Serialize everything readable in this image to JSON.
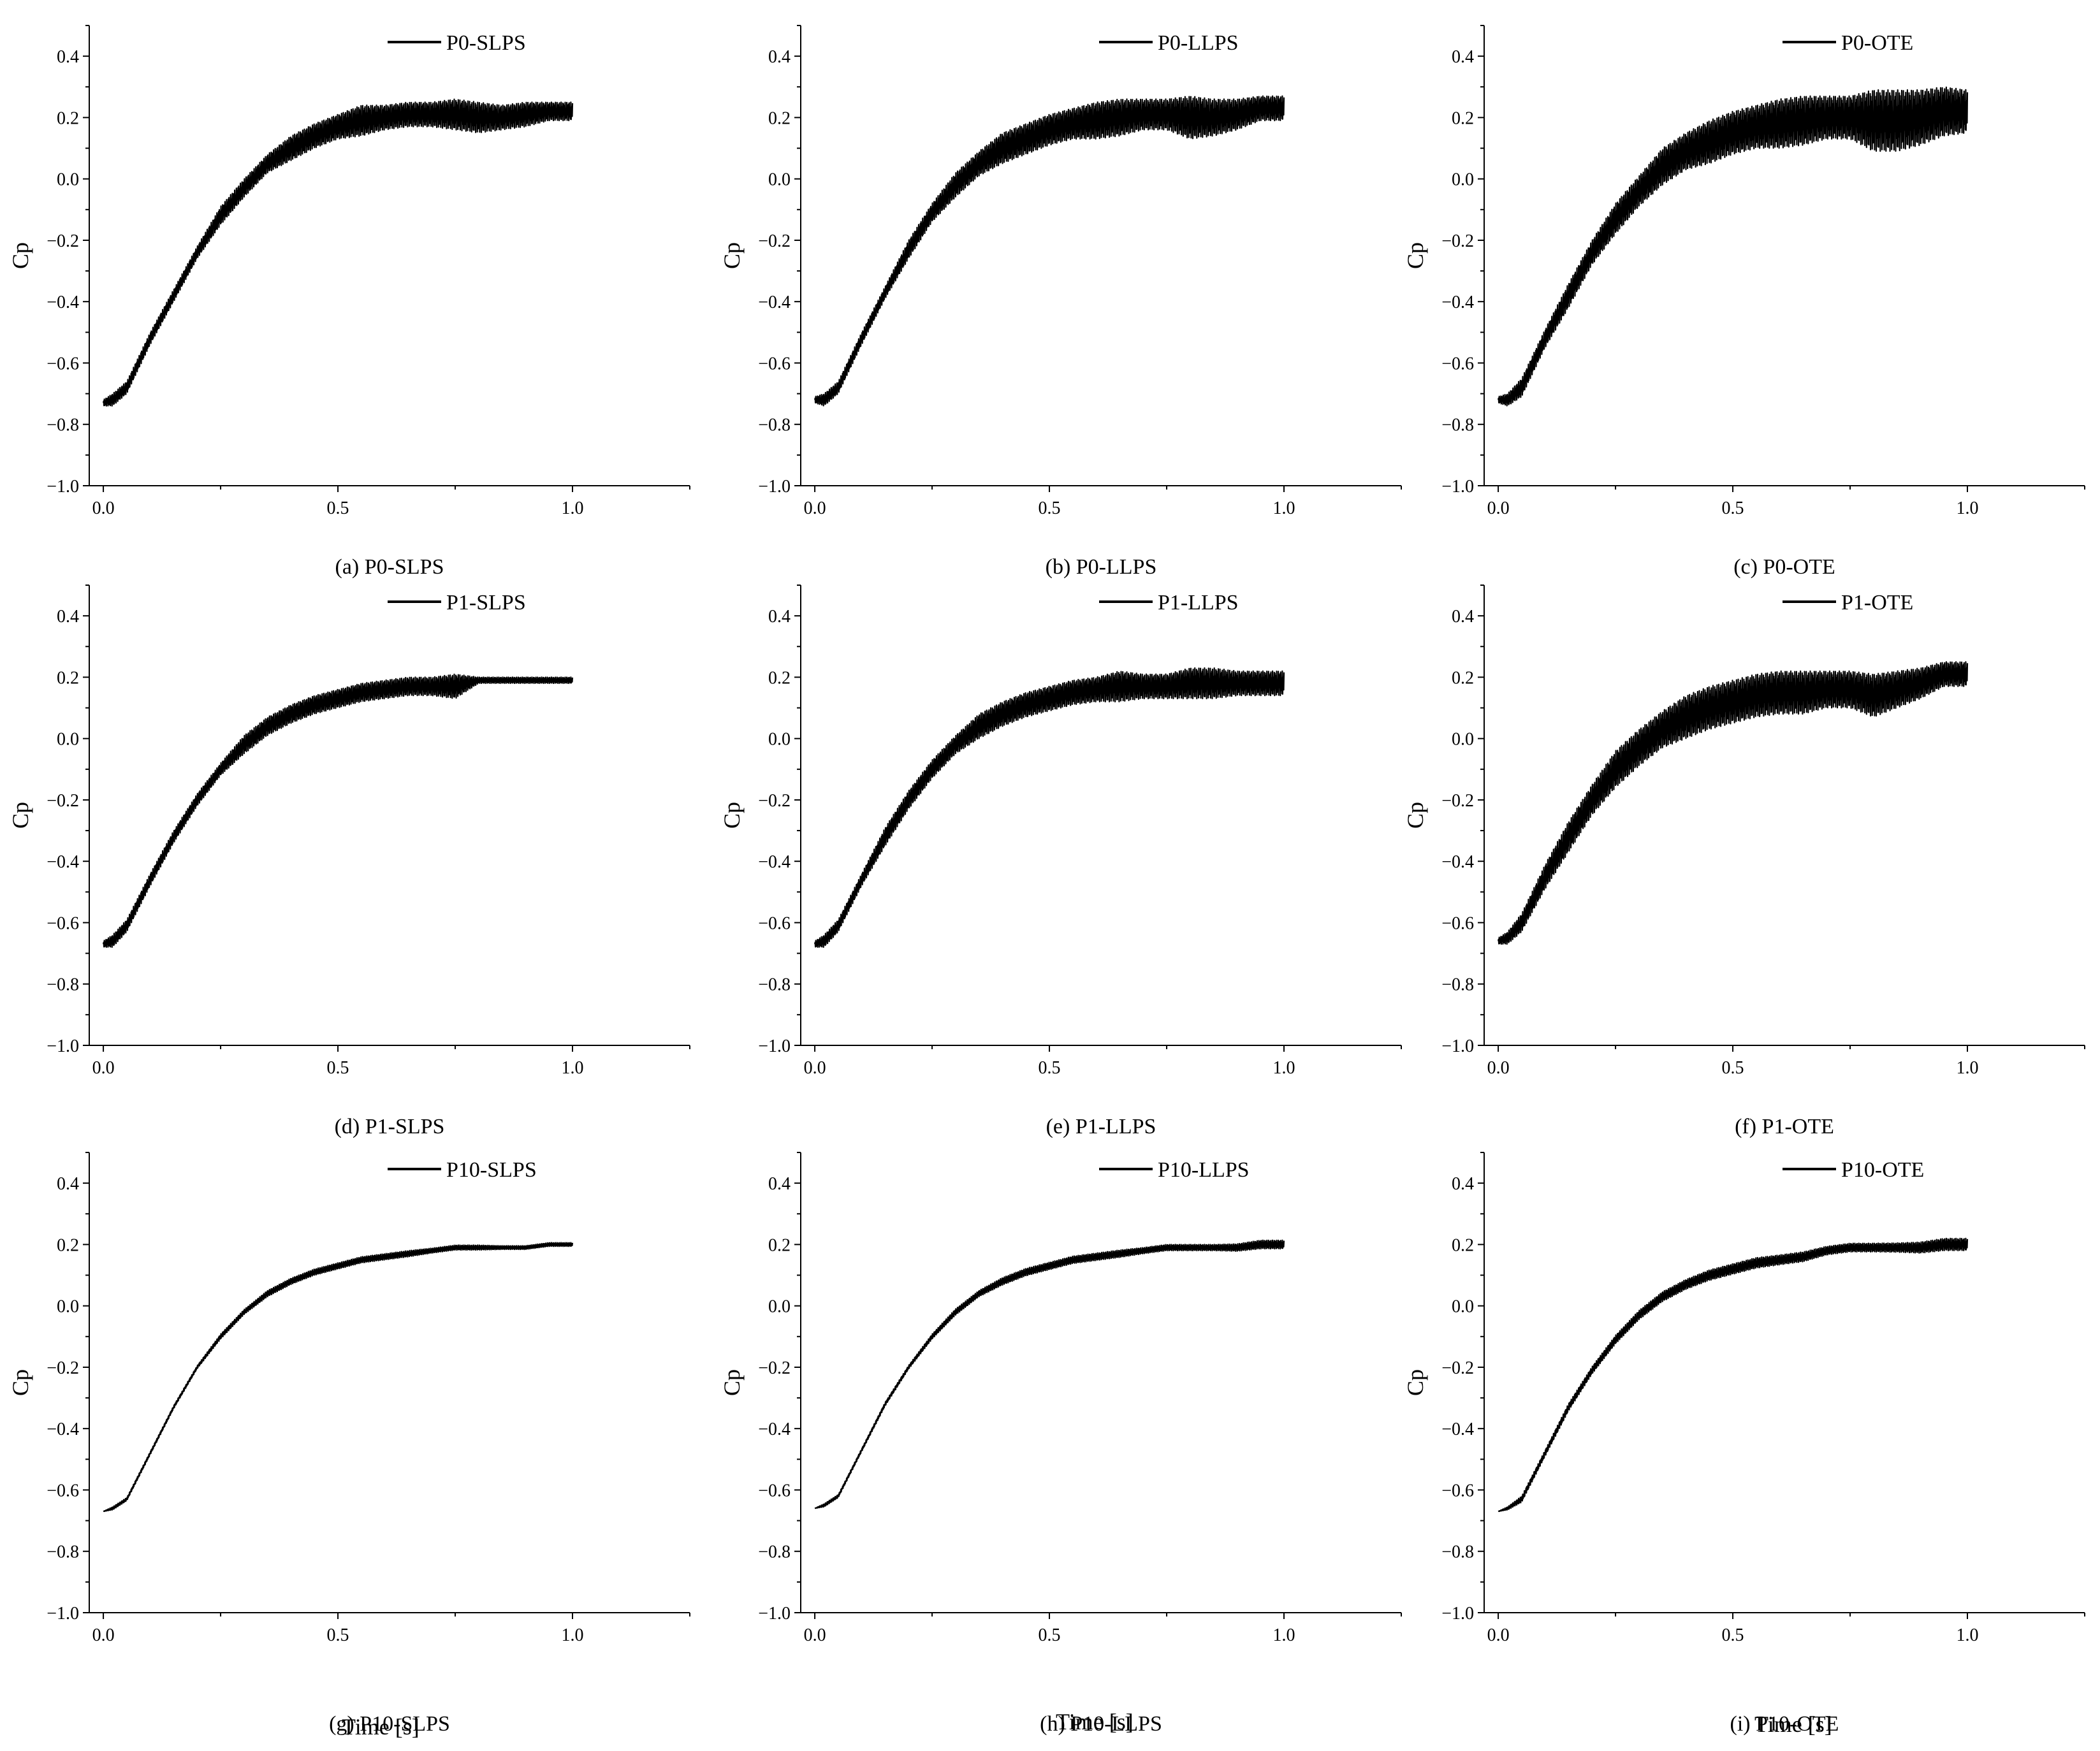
{
  "figure": {
    "xlabel_text": "Time [s]"
  },
  "chart_data": [
    {
      "type": "line",
      "panel": "a",
      "caption": "(a) P0-SLPS",
      "ylabel": "Cp",
      "xlabel": "",
      "legend": "P0-SLPS",
      "xlim": [
        -0.03,
        1.25
      ],
      "ylim": [
        -1.0,
        0.5
      ],
      "xticks": [
        "0.0",
        "0.5",
        "1.0"
      ],
      "yticks": [
        "-1.0",
        "-0.8",
        "-0.6",
        "-0.4",
        "-0.2",
        "0.0",
        "0.2",
        "0.4"
      ],
      "series": [
        {
          "name": "P0-SLPS",
          "x": [
            0.0,
            0.02,
            0.05,
            0.1,
            0.15,
            0.2,
            0.25,
            0.3,
            0.35,
            0.4,
            0.45,
            0.5,
            0.55,
            0.6,
            0.65,
            0.7,
            0.75,
            0.8,
            0.85,
            0.9,
            0.95,
            1.0
          ],
          "y": [
            -0.73,
            -0.72,
            -0.68,
            -0.52,
            -0.38,
            -0.24,
            -0.12,
            -0.03,
            0.05,
            0.1,
            0.14,
            0.17,
            0.19,
            0.2,
            0.21,
            0.21,
            0.21,
            0.2,
            0.2,
            0.21,
            0.22,
            0.22
          ],
          "amplitude": [
            0.01,
            0.02,
            0.02,
            0.02,
            0.02,
            0.02,
            0.03,
            0.03,
            0.03,
            0.04,
            0.04,
            0.04,
            0.05,
            0.04,
            0.04,
            0.04,
            0.05,
            0.05,
            0.04,
            0.04,
            0.03,
            0.03
          ]
        }
      ]
    },
    {
      "type": "line",
      "panel": "b",
      "caption": "(b) P0-LLPS",
      "ylabel": "Cp",
      "xlabel": "",
      "legend": "P0-LLPS",
      "xlim": [
        -0.03,
        1.25
      ],
      "ylim": [
        -1.0,
        0.5
      ],
      "xticks": [
        "0.0",
        "0.5",
        "1.0"
      ],
      "yticks": [
        "-1.0",
        "-0.8",
        "-0.6",
        "-0.4",
        "-0.2",
        "0.0",
        "0.2",
        "0.4"
      ],
      "series": [
        {
          "name": "P0-LLPS",
          "x": [
            0.0,
            0.02,
            0.05,
            0.1,
            0.15,
            0.2,
            0.25,
            0.3,
            0.35,
            0.4,
            0.45,
            0.5,
            0.55,
            0.6,
            0.65,
            0.7,
            0.75,
            0.8,
            0.85,
            0.9,
            0.95,
            1.0
          ],
          "y": [
            -0.72,
            -0.72,
            -0.68,
            -0.52,
            -0.37,
            -0.23,
            -0.11,
            -0.02,
            0.05,
            0.1,
            0.13,
            0.16,
            0.18,
            0.19,
            0.2,
            0.21,
            0.21,
            0.2,
            0.2,
            0.21,
            0.23,
            0.23
          ],
          "amplitude": [
            0.01,
            0.02,
            0.02,
            0.02,
            0.02,
            0.03,
            0.03,
            0.04,
            0.04,
            0.05,
            0.05,
            0.05,
            0.05,
            0.06,
            0.06,
            0.05,
            0.05,
            0.07,
            0.06,
            0.05,
            0.04,
            0.04
          ]
        }
      ]
    },
    {
      "type": "line",
      "panel": "c",
      "caption": "(c) P0-OTE",
      "ylabel": "Cp",
      "xlabel": "",
      "legend": "P0-OTE",
      "xlim": [
        -0.03,
        1.25
      ],
      "ylim": [
        -1.0,
        0.5
      ],
      "xticks": [
        "0.0",
        "0.5",
        "1.0"
      ],
      "yticks": [
        "-1.0",
        "-0.8",
        "-0.6",
        "-0.4",
        "-0.2",
        "0.0",
        "0.2",
        "0.4"
      ],
      "series": [
        {
          "name": "P0-OTE",
          "x": [
            0.0,
            0.02,
            0.05,
            0.1,
            0.15,
            0.2,
            0.25,
            0.3,
            0.35,
            0.4,
            0.45,
            0.5,
            0.55,
            0.6,
            0.65,
            0.7,
            0.75,
            0.8,
            0.85,
            0.9,
            0.95,
            1.0
          ],
          "y": [
            -0.72,
            -0.72,
            -0.68,
            -0.52,
            -0.38,
            -0.24,
            -0.13,
            -0.04,
            0.04,
            0.09,
            0.12,
            0.15,
            0.17,
            0.18,
            0.19,
            0.2,
            0.2,
            0.19,
            0.19,
            0.2,
            0.22,
            0.22
          ],
          "amplitude": [
            0.01,
            0.02,
            0.03,
            0.03,
            0.04,
            0.04,
            0.05,
            0.05,
            0.06,
            0.06,
            0.07,
            0.07,
            0.07,
            0.08,
            0.08,
            0.07,
            0.07,
            0.1,
            0.1,
            0.09,
            0.08,
            0.07
          ]
        }
      ]
    },
    {
      "type": "line",
      "panel": "d",
      "caption": "(d) P1-SLPS",
      "ylabel": "Cp",
      "xlabel": "",
      "legend": "P1-SLPS",
      "xlim": [
        -0.03,
        1.25
      ],
      "ylim": [
        -1.0,
        0.5
      ],
      "xticks": [
        "0.0",
        "0.5",
        "1.0"
      ],
      "yticks": [
        "-1.0",
        "-0.8",
        "-0.6",
        "-0.4",
        "-0.2",
        "0.0",
        "0.2",
        "0.4"
      ],
      "series": [
        {
          "name": "P1-SLPS",
          "x": [
            0.0,
            0.02,
            0.05,
            0.1,
            0.15,
            0.2,
            0.25,
            0.3,
            0.35,
            0.4,
            0.45,
            0.5,
            0.55,
            0.6,
            0.65,
            0.7,
            0.75,
            0.8,
            0.85,
            0.9,
            0.95,
            1.0
          ],
          "y": [
            -0.67,
            -0.66,
            -0.61,
            -0.46,
            -0.32,
            -0.2,
            -0.1,
            -0.02,
            0.04,
            0.08,
            0.11,
            0.13,
            0.15,
            0.16,
            0.17,
            0.17,
            0.17,
            0.19,
            0.19,
            0.19,
            0.19,
            0.19
          ],
          "amplitude": [
            0.01,
            0.02,
            0.02,
            0.02,
            0.02,
            0.02,
            0.02,
            0.03,
            0.03,
            0.03,
            0.03,
            0.03,
            0.03,
            0.03,
            0.03,
            0.03,
            0.04,
            0.01,
            0.01,
            0.01,
            0.01,
            0.01
          ]
        }
      ]
    },
    {
      "type": "line",
      "panel": "e",
      "caption": "(e) P1-LLPS",
      "ylabel": "Cp",
      "xlabel": "",
      "legend": "P1-LLPS",
      "xlim": [
        -0.03,
        1.25
      ],
      "ylim": [
        -1.0,
        0.5
      ],
      "xticks": [
        "0.0",
        "0.5",
        "1.0"
      ],
      "yticks": [
        "-1.0",
        "-0.8",
        "-0.6",
        "-0.4",
        "-0.2",
        "0.0",
        "0.2",
        "0.4"
      ],
      "series": [
        {
          "name": "P1-LLPS",
          "x": [
            0.0,
            0.02,
            0.05,
            0.1,
            0.15,
            0.2,
            0.25,
            0.3,
            0.35,
            0.4,
            0.45,
            0.5,
            0.55,
            0.6,
            0.65,
            0.7,
            0.75,
            0.8,
            0.85,
            0.9,
            0.95,
            1.0
          ],
          "y": [
            -0.67,
            -0.66,
            -0.61,
            -0.46,
            -0.32,
            -0.2,
            -0.1,
            -0.02,
            0.04,
            0.08,
            0.11,
            0.13,
            0.15,
            0.16,
            0.17,
            0.17,
            0.17,
            0.18,
            0.18,
            0.18,
            0.18,
            0.18
          ],
          "amplitude": [
            0.01,
            0.02,
            0.02,
            0.02,
            0.03,
            0.03,
            0.03,
            0.03,
            0.04,
            0.04,
            0.04,
            0.04,
            0.04,
            0.04,
            0.05,
            0.04,
            0.04,
            0.05,
            0.05,
            0.04,
            0.04,
            0.04
          ]
        }
      ]
    },
    {
      "type": "line",
      "panel": "f",
      "caption": "(f) P1-OTE",
      "ylabel": "Cp",
      "xlabel": "",
      "legend": "P1-OTE",
      "xlim": [
        -0.03,
        1.25
      ],
      "ylim": [
        -1.0,
        0.5
      ],
      "xticks": [
        "0.0",
        "0.5",
        "1.0"
      ],
      "yticks": [
        "-1.0",
        "-0.8",
        "-0.6",
        "-0.4",
        "-0.2",
        "0.0",
        "0.2",
        "0.4"
      ],
      "series": [
        {
          "name": "P1-OTE",
          "x": [
            0.0,
            0.02,
            0.05,
            0.1,
            0.15,
            0.2,
            0.25,
            0.3,
            0.35,
            0.4,
            0.45,
            0.5,
            0.55,
            0.6,
            0.65,
            0.7,
            0.75,
            0.8,
            0.85,
            0.9,
            0.95,
            1.0
          ],
          "y": [
            -0.66,
            -0.65,
            -0.6,
            -0.45,
            -0.32,
            -0.2,
            -0.1,
            -0.03,
            0.03,
            0.07,
            0.1,
            0.12,
            0.14,
            0.15,
            0.15,
            0.16,
            0.16,
            0.14,
            0.16,
            0.18,
            0.21,
            0.21
          ],
          "amplitude": [
            0.01,
            0.02,
            0.03,
            0.04,
            0.05,
            0.05,
            0.06,
            0.06,
            0.06,
            0.07,
            0.07,
            0.07,
            0.07,
            0.07,
            0.07,
            0.06,
            0.06,
            0.07,
            0.06,
            0.05,
            0.04,
            0.04
          ]
        }
      ]
    },
    {
      "type": "line",
      "panel": "g",
      "caption": "(g) P10-SLPS",
      "ylabel": "Cp",
      "xlabel": "Time [s]",
      "legend": "P10-SLPS",
      "xlim": [
        -0.03,
        1.25
      ],
      "ylim": [
        -1.0,
        0.5
      ],
      "xticks": [
        "0.0",
        "0.5",
        "1.0"
      ],
      "yticks": [
        "-1.0",
        "-0.8",
        "-0.6",
        "-0.4",
        "-0.2",
        "0.0",
        "0.2",
        "0.4"
      ],
      "series": [
        {
          "name": "P10-SLPS",
          "x": [
            0.0,
            0.02,
            0.05,
            0.1,
            0.15,
            0.2,
            0.25,
            0.3,
            0.35,
            0.4,
            0.45,
            0.5,
            0.55,
            0.6,
            0.65,
            0.7,
            0.75,
            0.8,
            0.85,
            0.9,
            0.95,
            1.0
          ],
          "y": [
            -0.67,
            -0.66,
            -0.63,
            -0.48,
            -0.33,
            -0.2,
            -0.1,
            -0.02,
            0.04,
            0.08,
            0.11,
            0.13,
            0.15,
            0.16,
            0.17,
            0.18,
            0.19,
            0.19,
            0.19,
            0.19,
            0.2,
            0.2
          ],
          "amplitude": [
            0.0,
            0.005,
            0.005,
            0.005,
            0.005,
            0.005,
            0.008,
            0.008,
            0.01,
            0.01,
            0.01,
            0.01,
            0.01,
            0.01,
            0.01,
            0.008,
            0.008,
            0.008,
            0.006,
            0.006,
            0.006,
            0.006
          ]
        }
      ]
    },
    {
      "type": "line",
      "panel": "h",
      "caption": "(h) P10-LLPS",
      "ylabel": "Cp",
      "xlabel": "Time [s]",
      "legend": "P10-LLPS",
      "xlim": [
        -0.03,
        1.25
      ],
      "ylim": [
        -1.0,
        0.5
      ],
      "xticks": [
        "0.0",
        "0.5",
        "1.0"
      ],
      "yticks": [
        "-1.0",
        "-0.8",
        "-0.6",
        "-0.4",
        "-0.2",
        "0.0",
        "0.2",
        "0.4"
      ],
      "series": [
        {
          "name": "P10-LLPS",
          "x": [
            0.0,
            0.02,
            0.05,
            0.1,
            0.15,
            0.2,
            0.25,
            0.3,
            0.35,
            0.4,
            0.45,
            0.5,
            0.55,
            0.6,
            0.65,
            0.7,
            0.75,
            0.8,
            0.85,
            0.9,
            0.95,
            1.0
          ],
          "y": [
            -0.66,
            -0.65,
            -0.62,
            -0.47,
            -0.32,
            -0.2,
            -0.1,
            -0.02,
            0.04,
            0.08,
            0.11,
            0.13,
            0.15,
            0.16,
            0.17,
            0.18,
            0.19,
            0.19,
            0.19,
            0.19,
            0.2,
            0.2
          ],
          "amplitude": [
            0.0,
            0.005,
            0.005,
            0.005,
            0.006,
            0.006,
            0.008,
            0.01,
            0.01,
            0.012,
            0.012,
            0.012,
            0.012,
            0.012,
            0.012,
            0.01,
            0.01,
            0.01,
            0.01,
            0.012,
            0.014,
            0.014
          ]
        }
      ]
    },
    {
      "type": "line",
      "panel": "i",
      "caption": "(i) P10-OTE",
      "ylabel": "Cp",
      "xlabel": "Time [s]",
      "legend": "P10-OTE",
      "xlim": [
        -0.03,
        1.25
      ],
      "ylim": [
        -1.0,
        0.5
      ],
      "xticks": [
        "0.0",
        "0.5",
        "1.0"
      ],
      "yticks": [
        "-1.0",
        "-0.8",
        "-0.6",
        "-0.4",
        "-0.2",
        "0.0",
        "0.2",
        "0.4"
      ],
      "series": [
        {
          "name": "P10-OTE",
          "x": [
            0.0,
            0.02,
            0.05,
            0.1,
            0.15,
            0.2,
            0.25,
            0.3,
            0.35,
            0.4,
            0.45,
            0.5,
            0.55,
            0.6,
            0.65,
            0.7,
            0.75,
            0.8,
            0.85,
            0.9,
            0.95,
            1.0
          ],
          "y": [
            -0.67,
            -0.66,
            -0.63,
            -0.48,
            -0.33,
            -0.21,
            -0.11,
            -0.03,
            0.03,
            0.07,
            0.1,
            0.12,
            0.14,
            0.15,
            0.16,
            0.18,
            0.19,
            0.19,
            0.19,
            0.19,
            0.2,
            0.2
          ],
          "amplitude": [
            0.0,
            0.005,
            0.01,
            0.01,
            0.012,
            0.012,
            0.014,
            0.015,
            0.016,
            0.016,
            0.017,
            0.017,
            0.017,
            0.016,
            0.016,
            0.014,
            0.014,
            0.014,
            0.015,
            0.018,
            0.02,
            0.02
          ]
        }
      ]
    }
  ]
}
